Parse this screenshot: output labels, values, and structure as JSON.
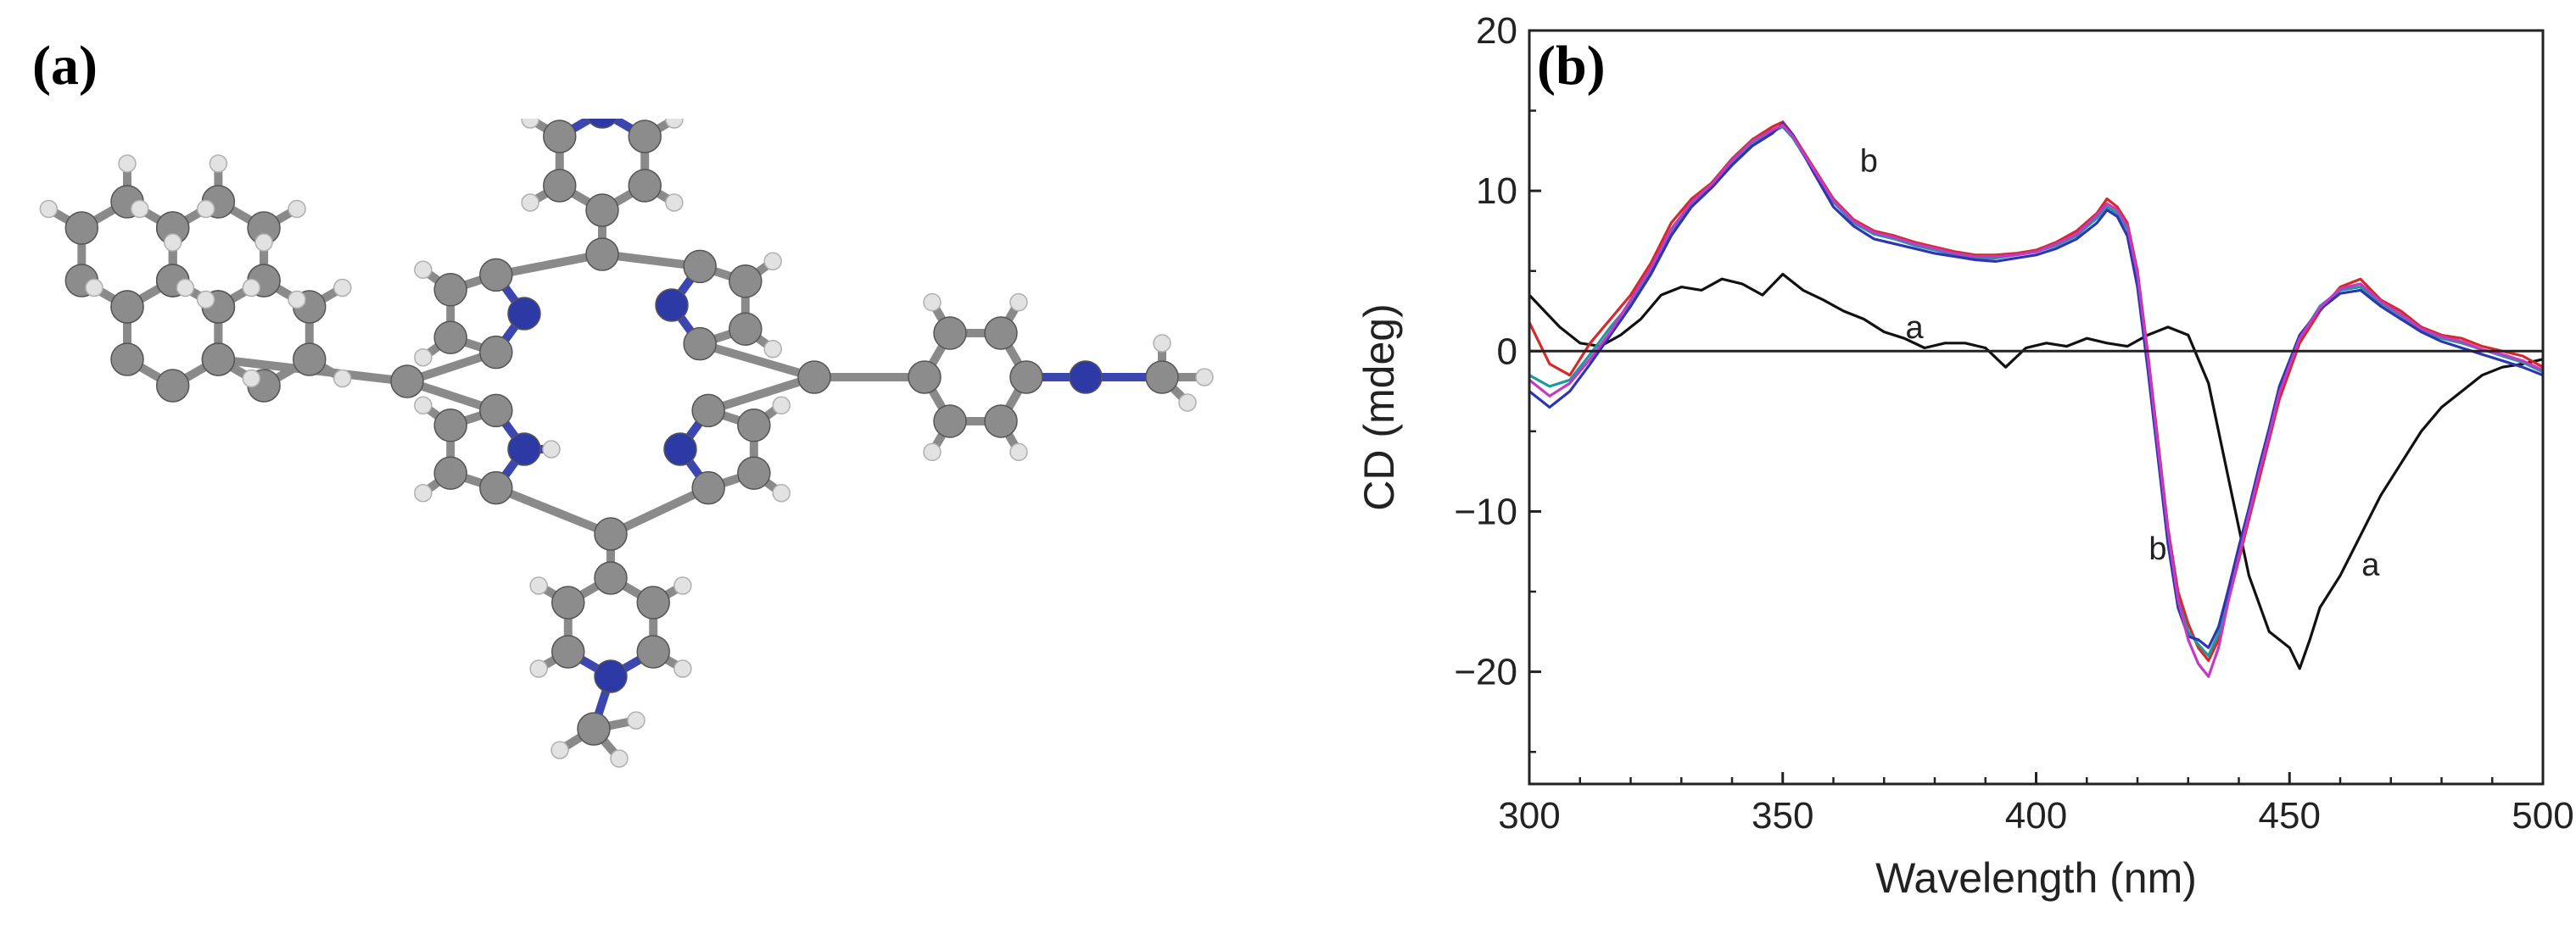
{
  "panels": {
    "a_label": "(a)",
    "b_label": "(b)"
  },
  "molecule": {
    "colors": {
      "carbon": "#8c8c8c",
      "nitrogen": "#2d3aa6",
      "hydrogen": "#e2e2e2",
      "bond": "#8a8a8a",
      "nbond": "#3b46b0"
    }
  },
  "chart_data": {
    "type": "line",
    "title": "",
    "xlabel": "Wavelength (nm)",
    "ylabel": "CD (mdeg)",
    "xlim": [
      300,
      500
    ],
    "ylim": [
      -27,
      20
    ],
    "xticks": [
      300,
      350,
      400,
      450,
      500
    ],
    "yticks": [
      20,
      10,
      0,
      -10,
      -20
    ],
    "ytick_labels": [
      "20",
      "10",
      "0",
      "−10",
      "−20"
    ],
    "grid": false,
    "zero_line": true,
    "annotations": [
      {
        "text": "b",
        "x": 367,
        "y": 11.2
      },
      {
        "text": "a",
        "x": 376,
        "y": 0.8
      },
      {
        "text": "b",
        "x": 424,
        "y": -13
      },
      {
        "text": "a",
        "x": 466,
        "y": -14
      }
    ],
    "series": [
      {
        "label": "a",
        "color": "#111111",
        "x": [
          300,
          303,
          306,
          310,
          314,
          318,
          322,
          326,
          330,
          334,
          338,
          342,
          346,
          350,
          354,
          358,
          362,
          366,
          370,
          374,
          378,
          382,
          386,
          390,
          394,
          398,
          402,
          406,
          410,
          414,
          418,
          422,
          426,
          430,
          434,
          438,
          442,
          446,
          450,
          452,
          454,
          456,
          460,
          464,
          468,
          472,
          476,
          480,
          484,
          488,
          492,
          496,
          500
        ],
        "y": [
          3.5,
          2.5,
          1.5,
          0.5,
          0.3,
          1.0,
          2.0,
          3.5,
          4.0,
          3.8,
          4.5,
          4.2,
          3.5,
          4.8,
          3.8,
          3.2,
          2.5,
          2.0,
          1.2,
          0.8,
          0.2,
          0.5,
          0.5,
          0.2,
          -1.0,
          0.2,
          0.5,
          0.3,
          0.8,
          0.5,
          0.3,
          1.0,
          1.5,
          1.0,
          -2.0,
          -8.0,
          -14.0,
          -17.5,
          -18.5,
          -19.8,
          -18.0,
          -16.0,
          -14.0,
          -11.5,
          -9.0,
          -7.0,
          -5.0,
          -3.5,
          -2.5,
          -1.5,
          -1.0,
          -0.8,
          -0.5
        ]
      },
      {
        "label": "b (red)",
        "color": "#d62a2a",
        "x": [
          300,
          304,
          308,
          312,
          316,
          320,
          324,
          328,
          332,
          336,
          340,
          344,
          348,
          350,
          352,
          356,
          360,
          364,
          368,
          372,
          376,
          380,
          384,
          388,
          392,
          396,
          400,
          404,
          408,
          412,
          414,
          416,
          418,
          420,
          422,
          424,
          426,
          428,
          430,
          432,
          434,
          436,
          438,
          440,
          442,
          444,
          446,
          448,
          452,
          456,
          460,
          464,
          468,
          472,
          476,
          480,
          484,
          488,
          492,
          496,
          500
        ],
        "y": [
          1.8,
          -0.8,
          -1.5,
          0.5,
          2.0,
          3.5,
          5.5,
          8.0,
          9.5,
          10.5,
          12.0,
          13.2,
          14.0,
          14.3,
          13.5,
          11.5,
          9.5,
          8.2,
          7.5,
          7.2,
          6.8,
          6.5,
          6.2,
          6.0,
          6.0,
          6.1,
          6.3,
          6.8,
          7.5,
          8.6,
          9.5,
          9.0,
          8.0,
          5.0,
          0.0,
          -5.5,
          -11.0,
          -15.0,
          -17.0,
          -18.5,
          -19.3,
          -18.0,
          -15.5,
          -13.0,
          -10.5,
          -8.0,
          -5.5,
          -3.0,
          0.5,
          2.5,
          4.0,
          4.5,
          3.2,
          2.5,
          1.5,
          1.0,
          0.8,
          0.3,
          0.0,
          -0.3,
          -1.0
        ]
      },
      {
        "label": "b (teal)",
        "color": "#1c9aa0",
        "x": [
          300,
          304,
          308,
          312,
          316,
          320,
          324,
          328,
          332,
          336,
          340,
          344,
          348,
          350,
          352,
          356,
          360,
          364,
          368,
          372,
          376,
          380,
          384,
          388,
          392,
          396,
          400,
          404,
          408,
          412,
          414,
          416,
          418,
          420,
          422,
          424,
          426,
          428,
          430,
          432,
          434,
          436,
          438,
          440,
          442,
          444,
          446,
          448,
          452,
          456,
          460,
          464,
          468,
          472,
          476,
          480,
          484,
          488,
          492,
          496,
          500
        ],
        "y": [
          -1.5,
          -2.2,
          -1.8,
          -0.2,
          1.5,
          3.0,
          5.0,
          7.5,
          9.2,
          10.3,
          11.8,
          13.0,
          13.7,
          14.0,
          13.3,
          11.3,
          9.3,
          8.0,
          7.3,
          7.0,
          6.6,
          6.3,
          6.0,
          5.8,
          5.8,
          6.0,
          6.2,
          6.6,
          7.2,
          8.3,
          9.0,
          8.6,
          7.6,
          4.5,
          -0.5,
          -6.0,
          -11.5,
          -15.5,
          -17.5,
          -18.3,
          -19.0,
          -17.6,
          -15.0,
          -12.5,
          -10.0,
          -7.5,
          -5.0,
          -2.5,
          0.8,
          2.8,
          3.8,
          4.0,
          3.0,
          2.2,
          1.3,
          0.8,
          0.5,
          0.1,
          -0.3,
          -0.7,
          -1.3
        ]
      },
      {
        "label": "b (blue)",
        "color": "#2d36b0",
        "x": [
          300,
          304,
          308,
          312,
          316,
          320,
          324,
          328,
          332,
          336,
          340,
          344,
          348,
          350,
          352,
          356,
          360,
          364,
          368,
          372,
          376,
          380,
          384,
          388,
          392,
          396,
          400,
          404,
          408,
          412,
          414,
          416,
          418,
          420,
          422,
          424,
          426,
          428,
          430,
          432,
          434,
          436,
          438,
          440,
          442,
          444,
          446,
          448,
          452,
          456,
          460,
          464,
          468,
          472,
          476,
          480,
          484,
          488,
          492,
          496,
          500
        ],
        "y": [
          -2.5,
          -3.5,
          -2.5,
          -0.8,
          1.0,
          2.8,
          4.8,
          7.2,
          9.0,
          10.2,
          11.6,
          12.8,
          13.6,
          14.2,
          13.5,
          11.2,
          9.0,
          7.8,
          7.0,
          6.7,
          6.4,
          6.1,
          5.9,
          5.7,
          5.6,
          5.8,
          6.0,
          6.4,
          7.0,
          8.0,
          8.8,
          8.4,
          7.2,
          4.0,
          -1.0,
          -6.5,
          -12.0,
          -16.0,
          -17.8,
          -18.0,
          -18.5,
          -17.2,
          -14.8,
          -12.2,
          -9.8,
          -7.2,
          -4.8,
          -2.2,
          1.0,
          2.6,
          3.6,
          3.8,
          2.8,
          2.0,
          1.2,
          0.6,
          0.2,
          -0.2,
          -0.6,
          -1.0,
          -1.5
        ]
      },
      {
        "label": "b (magenta)",
        "color": "#c43ac4",
        "x": [
          300,
          304,
          308,
          312,
          316,
          320,
          324,
          328,
          332,
          336,
          340,
          344,
          348,
          350,
          352,
          356,
          360,
          364,
          368,
          372,
          376,
          380,
          384,
          388,
          392,
          396,
          400,
          404,
          408,
          412,
          414,
          416,
          418,
          420,
          422,
          424,
          426,
          428,
          430,
          432,
          434,
          436,
          438,
          440,
          442,
          444,
          446,
          448,
          452,
          456,
          460,
          464,
          468,
          472,
          476,
          480,
          484,
          488,
          492,
          496,
          500
        ],
        "y": [
          -1.8,
          -2.8,
          -2.0,
          -0.5,
          1.2,
          3.2,
          5.2,
          7.6,
          9.3,
          10.4,
          11.9,
          13.1,
          13.8,
          14.1,
          13.4,
          11.4,
          9.4,
          8.1,
          7.4,
          7.1,
          6.7,
          6.4,
          6.1,
          5.9,
          5.9,
          6.0,
          6.2,
          6.7,
          7.3,
          8.5,
          9.2,
          8.8,
          7.8,
          4.8,
          -0.2,
          -5.8,
          -11.2,
          -15.5,
          -18.0,
          -19.5,
          -20.3,
          -18.5,
          -15.5,
          -12.8,
          -10.2,
          -7.6,
          -5.2,
          -2.6,
          0.8,
          2.7,
          3.9,
          4.2,
          3.1,
          2.3,
          1.4,
          0.9,
          0.6,
          0.1,
          -0.2,
          -0.6,
          -1.2
        ]
      }
    ]
  }
}
